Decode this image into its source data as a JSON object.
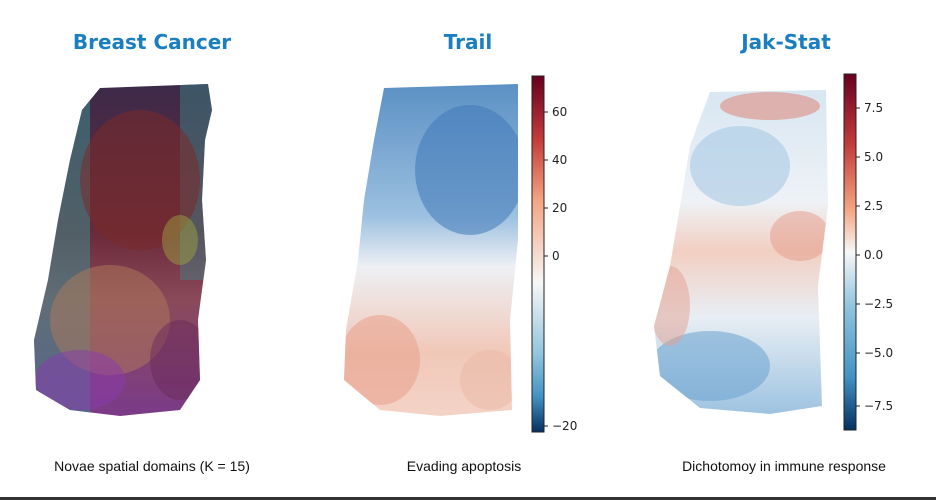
{
  "panels": [
    {
      "title": "Breast Cancer",
      "caption": "Novae spatial domains (K = 15)"
    },
    {
      "title": "Trail",
      "caption": "Evading apoptosis",
      "colorbar": {
        "ticks": [
          "60",
          "40",
          "20",
          "0",
          "−20"
        ]
      }
    },
    {
      "title": "Jak-Stat",
      "caption": "Dichotomoy in immune response",
      "colorbar": {
        "ticks": [
          "7.5",
          "5.0",
          "2.5",
          "0.0",
          "−2.5",
          "−5.0",
          "−7.5"
        ]
      }
    }
  ],
  "colors": {
    "title": "#1a7fc0",
    "cmap_top": "#67001f",
    "cmap_mid": "#f7f7f7",
    "cmap_bottom": "#053061"
  }
}
